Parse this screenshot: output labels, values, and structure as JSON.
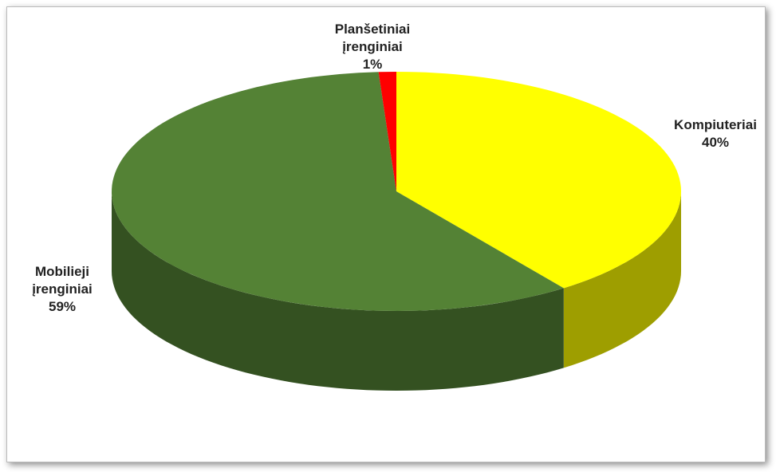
{
  "chart_data": {
    "type": "pie3d",
    "categories": [
      "Kompiuteriai",
      "Mobilieji įrenginiai",
      "Planšetiniai įrenginiai"
    ],
    "values": [
      40,
      59,
      1
    ],
    "value_labels": [
      "40%",
      "59%",
      "1%"
    ],
    "colors": [
      "#ffff00",
      "#548235",
      "#ff0000"
    ]
  }
}
